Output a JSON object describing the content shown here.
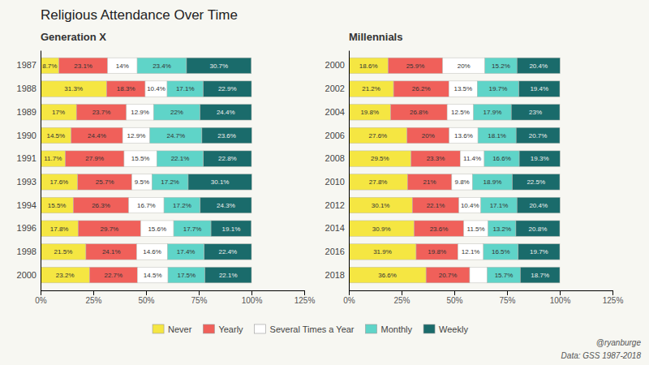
{
  "chart_data": [
    {
      "type": "bar",
      "orientation": "horizontal",
      "stacked": true,
      "data_labels": true,
      "grid": false,
      "legend": "bottom",
      "title": "Religious Attendance Over Time",
      "subtitle": "Generation X",
      "categories": [
        "1987",
        "1988",
        "1989",
        "1990",
        "1991",
        "1993",
        "1994",
        "1996",
        "1998",
        "2000"
      ],
      "xlim": [
        0,
        125
      ],
      "xticks": [
        {
          "value": 0,
          "label": "0%"
        },
        {
          "value": 25,
          "label": "25%"
        },
        {
          "value": 50,
          "label": "50%"
        },
        {
          "value": 75,
          "label": "75%"
        },
        {
          "value": 100,
          "label": "100%"
        },
        {
          "value": 125,
          "label": "125%"
        }
      ],
      "series": [
        {
          "name": "Never",
          "color": "#f5e642",
          "values": [
            8.7,
            31.3,
            17.0,
            14.5,
            11.7,
            17.6,
            15.5,
            17.8,
            21.5,
            23.2
          ],
          "value_labels": [
            "8.7%",
            "31.3%",
            "17%",
            "14.5%",
            "11.7%",
            "17.6%",
            "15.5%",
            "17.8%",
            "21.5%",
            "23.2%"
          ]
        },
        {
          "name": "Yearly",
          "color": "#f0605a",
          "values": [
            23.1,
            18.3,
            23.7,
            24.4,
            27.9,
            25.7,
            26.3,
            29.7,
            24.1,
            22.7
          ],
          "value_labels": [
            "23.1%",
            "18.3%",
            "23.7%",
            "24.4%",
            "27.9%",
            "25.7%",
            "26.3%",
            "29.7%",
            "24.1%",
            "22.7%"
          ]
        },
        {
          "name": "Several Times a Year",
          "color": "#ffffff",
          "values": [
            14.0,
            10.4,
            12.9,
            12.9,
            15.5,
            9.5,
            16.7,
            15.6,
            14.6,
            14.5
          ],
          "value_labels": [
            "14%",
            "10.4%",
            "12.9%",
            "12.9%",
            "15.5%",
            "9.5%",
            "16.7%",
            "15.6%",
            "14.6%",
            "14.5%"
          ]
        },
        {
          "name": "Monthly",
          "color": "#5fd4c8",
          "values": [
            23.4,
            17.1,
            22.0,
            24.7,
            22.1,
            17.2,
            17.2,
            17.7,
            17.4,
            17.5
          ],
          "value_labels": [
            "23.4%",
            "17.1%",
            "22%",
            "24.7%",
            "22.1%",
            "17.2%",
            "17.2%",
            "17.7%",
            "17.4%",
            "17.5%"
          ]
        },
        {
          "name": "Weekly",
          "color": "#1a6b6b",
          "values": [
            30.7,
            22.9,
            24.4,
            23.6,
            22.8,
            30.1,
            24.3,
            19.1,
            22.4,
            22.1
          ],
          "value_labels": [
            "30.7%",
            "22.9%",
            "24.4%",
            "23.6%",
            "22.8%",
            "30.1%",
            "24.3%",
            "19.1%",
            "22.4%",
            "22.1%"
          ]
        }
      ]
    },
    {
      "type": "bar",
      "orientation": "horizontal",
      "stacked": true,
      "data_labels": true,
      "grid": false,
      "subtitle": "Millennials",
      "categories": [
        "2000",
        "2002",
        "2004",
        "2006",
        "2008",
        "2010",
        "2012",
        "2014",
        "2016",
        "2018"
      ],
      "xlim": [
        0,
        125
      ],
      "xticks": [
        {
          "value": 0,
          "label": "0%"
        },
        {
          "value": 25,
          "label": "25%"
        },
        {
          "value": 50,
          "label": "50%"
        },
        {
          "value": 75,
          "label": "75%"
        },
        {
          "value": 100,
          "label": "100%"
        },
        {
          "value": 125,
          "label": "125%"
        }
      ],
      "annotations": [
        "@ryanburge",
        "Data: GSS 1987-2018"
      ],
      "series": [
        {
          "name": "Never",
          "color": "#f5e642",
          "values": [
            18.6,
            21.2,
            19.8,
            27.6,
            29.5,
            27.8,
            30.1,
            30.9,
            31.9,
            36.6
          ],
          "value_labels": [
            "18.6%",
            "21.2%",
            "19.8%",
            "27.6%",
            "29.5%",
            "27.8%",
            "30.1%",
            "30.9%",
            "31.9%",
            "36.6%"
          ]
        },
        {
          "name": "Yearly",
          "color": "#f0605a",
          "values": [
            25.9,
            26.2,
            26.8,
            20.0,
            23.3,
            21.0,
            22.1,
            23.6,
            19.8,
            20.7
          ],
          "value_labels": [
            "25.9%",
            "26.2%",
            "26.8%",
            "20%",
            "23.3%",
            "21%",
            "22.1%",
            "23.6%",
            "19.8%",
            "20.7%"
          ]
        },
        {
          "name": "Several Times a Year",
          "color": "#ffffff",
          "values": [
            20.0,
            13.5,
            12.5,
            13.6,
            11.4,
            9.8,
            10.4,
            11.5,
            12.1,
            8.3
          ],
          "value_labels": [
            "20%",
            "13.5%",
            "12.5%",
            "13.6%",
            "11.4%",
            "9.8%",
            "10.4%",
            "11.5%",
            "12.1%",
            null
          ]
        },
        {
          "name": "Monthly",
          "color": "#5fd4c8",
          "values": [
            15.2,
            19.7,
            17.9,
            18.1,
            16.6,
            18.9,
            17.1,
            13.2,
            16.5,
            15.7
          ],
          "value_labels": [
            "15.2%",
            "19.7%",
            "17.9%",
            "18.1%",
            "16.6%",
            "18.9%",
            "17.1%",
            "13.2%",
            "16.5%",
            "15.7%"
          ]
        },
        {
          "name": "Weekly",
          "color": "#1a6b6b",
          "values": [
            20.4,
            19.4,
            23.0,
            20.7,
            19.3,
            22.5,
            20.4,
            20.8,
            19.7,
            18.7
          ],
          "value_labels": [
            "20.4%",
            "19.4%",
            "23%",
            "20.7%",
            "19.3%",
            "22.5%",
            "20.4%",
            "20.8%",
            "19.7%",
            "18.7%"
          ]
        }
      ]
    }
  ]
}
